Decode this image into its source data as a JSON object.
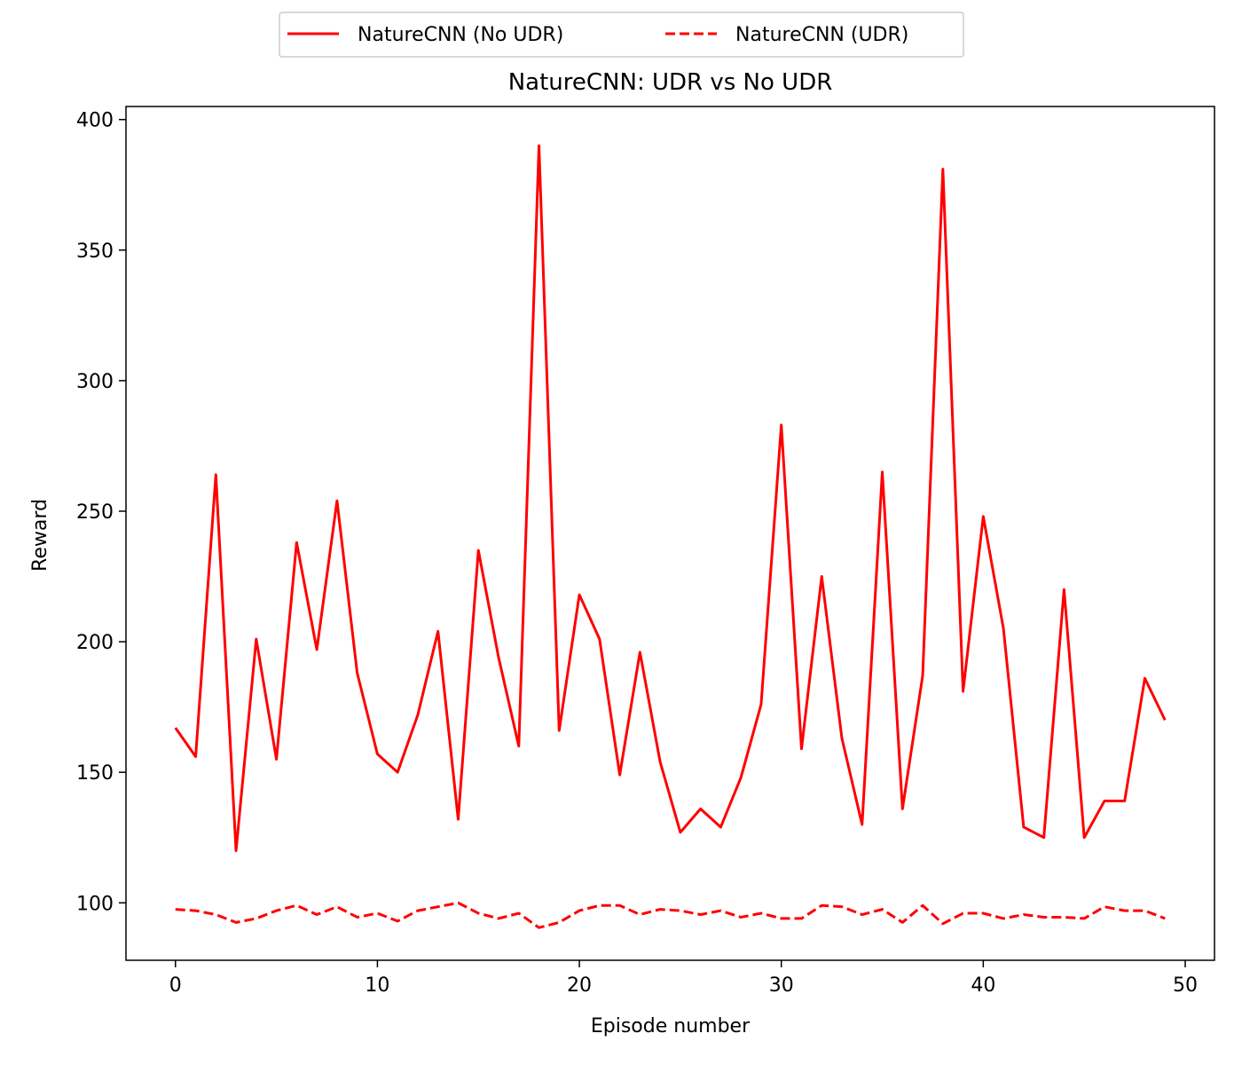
{
  "chart_data": {
    "type": "line",
    "title": "NatureCNN: UDR vs No UDR",
    "xlabel": "Episode number",
    "ylabel": "Reward",
    "xlim": [
      -2.45,
      51.45
    ],
    "ylim": [
      78,
      405
    ],
    "xticks": [
      0,
      10,
      20,
      30,
      40,
      50
    ],
    "yticks": [
      100,
      150,
      200,
      250,
      300,
      350,
      400
    ],
    "grid": false,
    "legend_position": "top-center, outside plot",
    "series": [
      {
        "name": "NatureCNN (No UDR)",
        "style": "solid",
        "color": "#ff0000",
        "x": [
          0,
          1,
          2,
          3,
          4,
          5,
          6,
          7,
          8,
          9,
          10,
          11,
          12,
          13,
          14,
          15,
          16,
          17,
          18,
          19,
          20,
          21,
          22,
          23,
          24,
          25,
          26,
          27,
          28,
          29,
          30,
          31,
          32,
          33,
          34,
          35,
          36,
          37,
          38,
          39,
          40,
          41,
          42,
          43,
          44,
          45,
          46,
          47,
          48,
          49
        ],
        "values": [
          167,
          156,
          264,
          120,
          201,
          155,
          238,
          197,
          254,
          188,
          157,
          150,
          172,
          204,
          132,
          235,
          194,
          160,
          390,
          166,
          218,
          201,
          149,
          196,
          154,
          127,
          136,
          129,
          148,
          176,
          283,
          159,
          225,
          163,
          130,
          265,
          136,
          187,
          381,
          181,
          248,
          205,
          129,
          125,
          220,
          125,
          139,
          139,
          186,
          170
        ]
      },
      {
        "name": "NatureCNN (UDR)",
        "style": "dashed",
        "color": "#ff0000",
        "x": [
          0,
          1,
          2,
          3,
          4,
          5,
          6,
          7,
          8,
          9,
          10,
          11,
          12,
          13,
          14,
          15,
          16,
          17,
          18,
          19,
          20,
          21,
          22,
          23,
          24,
          25,
          26,
          27,
          28,
          29,
          30,
          31,
          32,
          33,
          34,
          35,
          36,
          37,
          38,
          39,
          40,
          41,
          42,
          43,
          44,
          45,
          46,
          47,
          48,
          49
        ],
        "values": [
          97.5,
          97,
          95.5,
          92.5,
          94,
          97,
          99,
          95.5,
          98.5,
          94.5,
          96,
          93,
          97,
          98.5,
          100,
          96,
          94,
          96,
          90.5,
          92.5,
          97,
          99,
          99,
          95.5,
          97.5,
          97,
          95.5,
          97,
          94.5,
          96,
          94,
          94,
          99,
          98.5,
          95.5,
          97.5,
          92.5,
          99,
          92,
          96,
          96,
          94,
          95.5,
          94.5,
          94.5,
          94,
          98.5,
          97,
          97,
          94
        ]
      }
    ]
  }
}
